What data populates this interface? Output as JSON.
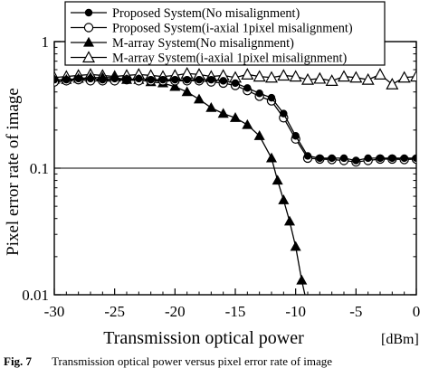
{
  "chart_data": {
    "type": "line",
    "xlabel": "Transmission optical power",
    "xunit": "[dBm]",
    "ylabel": "Pixel error rate of image",
    "xlim": [
      -30,
      0
    ],
    "ylim": [
      0.01,
      1
    ],
    "yscale": "log",
    "xticks": [
      "-30",
      "-25",
      "-20",
      "-15",
      "-10",
      "-5",
      "0"
    ],
    "yticks": [
      {
        "value": 1,
        "label": "1"
      },
      {
        "value": 0.1,
        "label": "0.1"
      },
      {
        "value": 0.01,
        "label": "0.01"
      }
    ],
    "reference_line_y": 0.1,
    "legend_position": "top",
    "series": [
      {
        "name": "Proposed System(No misalignment)",
        "marker": "filled-circle",
        "x": [
          -30,
          -29,
          -28,
          -27,
          -26,
          -25,
          -24,
          -23,
          -22,
          -21,
          -20,
          -19,
          -18,
          -17,
          -16,
          -15,
          -14,
          -13,
          -12,
          -11,
          -10,
          -9,
          -8,
          -7,
          -6,
          -5,
          -4,
          -3,
          -2,
          -1,
          0
        ],
        "y": [
          0.5,
          0.5,
          0.51,
          0.51,
          0.5,
          0.51,
          0.5,
          0.51,
          0.5,
          0.5,
          0.5,
          0.5,
          0.5,
          0.5,
          0.49,
          0.47,
          0.43,
          0.39,
          0.36,
          0.27,
          0.18,
          0.125,
          0.12,
          0.12,
          0.12,
          0.115,
          0.12,
          0.12,
          0.12,
          0.12,
          0.12
        ]
      },
      {
        "name": "Proposed System(i-axial 1pixel misalignment)",
        "marker": "open-circle",
        "x": [
          -30,
          -29,
          -28,
          -27,
          -26,
          -25,
          -24,
          -23,
          -22,
          -21,
          -20,
          -19,
          -18,
          -17,
          -16,
          -15,
          -14,
          -13,
          -12,
          -11,
          -10,
          -9,
          -8,
          -7,
          -6,
          -5,
          -4,
          -3,
          -2,
          -1,
          0
        ],
        "y": [
          0.48,
          0.49,
          0.5,
          0.49,
          0.49,
          0.49,
          0.5,
          0.49,
          0.49,
          0.49,
          0.49,
          0.49,
          0.49,
          0.48,
          0.47,
          0.45,
          0.41,
          0.37,
          0.34,
          0.25,
          0.17,
          0.12,
          0.118,
          0.117,
          0.115,
          0.112,
          0.115,
          0.118,
          0.118,
          0.117,
          0.118
        ]
      },
      {
        "name": "M-array System(No misalignment)",
        "marker": "filled-triangle",
        "x": [
          -30,
          -29,
          -28,
          -27,
          -26,
          -25,
          -24,
          -23,
          -22,
          -21,
          -20,
          -19,
          -18,
          -17,
          -16,
          -15,
          -14,
          -13,
          -12,
          -11.5,
          -11,
          -10.5,
          -10,
          -9.5,
          -9
        ],
        "y": [
          0.5,
          0.5,
          0.51,
          0.52,
          0.52,
          0.52,
          0.5,
          0.5,
          0.48,
          0.47,
          0.44,
          0.4,
          0.35,
          0.3,
          0.27,
          0.25,
          0.22,
          0.18,
          0.12,
          0.08,
          0.056,
          0.038,
          0.024,
          0.013,
          0.008
        ]
      },
      {
        "name": "M-array System(i-axial 1pixel misalignment)",
        "marker": "open-triangle",
        "x": [
          -30,
          -29,
          -28,
          -27,
          -26,
          -25,
          -24,
          -23,
          -22,
          -21,
          -20,
          -19,
          -18,
          -17,
          -16,
          -15,
          -14,
          -13,
          -12,
          -11,
          -10,
          -9,
          -8,
          -7,
          -6,
          -5,
          -4,
          -3,
          -2,
          -1,
          0
        ],
        "y": [
          0.52,
          0.53,
          0.54,
          0.55,
          0.54,
          0.53,
          0.54,
          0.55,
          0.54,
          0.53,
          0.54,
          0.56,
          0.55,
          0.53,
          0.54,
          0.52,
          0.55,
          0.53,
          0.52,
          0.54,
          0.53,
          0.5,
          0.51,
          0.49,
          0.53,
          0.52,
          0.5,
          0.55,
          0.46,
          0.52,
          0.53
        ]
      }
    ]
  },
  "caption": {
    "label": "Fig. 7",
    "text": "Transmission optical power versus pixel error rate of image"
  }
}
